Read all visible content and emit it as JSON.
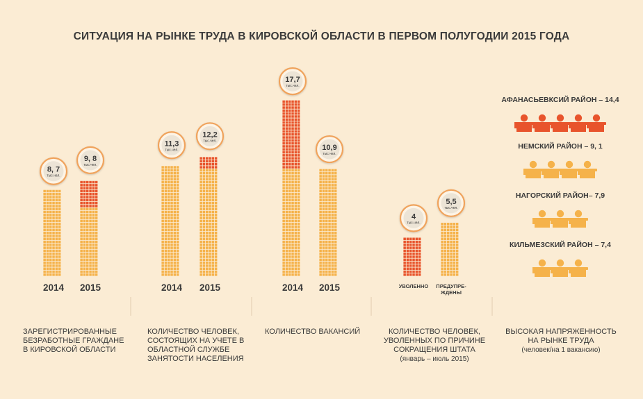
{
  "title": "СИТУАЦИЯ НА РЫНКЕ ТРУДА В КИРОВСКОЙ ОБЛАСТИ В ПЕРВОМ ПОЛУГОДИИ 2015 ГОДА",
  "colors": {
    "background": "#fbecd4",
    "base": "#f5b24a",
    "highlight": "#e8542c",
    "circle_ring": "#f0a35c"
  },
  "chart_data": [
    {
      "type": "bar",
      "caption": "ЗАРЕГИСТРИРОВАННЫЕ БЕЗРАБОТНЫЕ ГРАЖДАНЕ В КИРОВСКОЙ ОБЛАСТИ",
      "categories": [
        "2014",
        "2015"
      ],
      "values": [
        8.7,
        9.8
      ],
      "value_labels": [
        "8, 7",
        "9, 8"
      ],
      "unit": "тыс.чел."
    },
    {
      "type": "bar",
      "caption": "КОЛИЧЕСТВО ЧЕЛОВЕК, СОСТОЯЩИХ НА УЧЕТЕ В ОБЛАСТНОЙ СЛУЖБЕ ЗАНЯТОСТИ НАСЕЛЕНИЯ",
      "categories": [
        "2014",
        "2015"
      ],
      "values": [
        11.3,
        12.2
      ],
      "value_labels": [
        "11,3",
        "12,2"
      ],
      "unit": "тыс.чел."
    },
    {
      "type": "bar",
      "caption": "КОЛИЧЕСТВО ВАКАНСИЙ",
      "categories": [
        "2014",
        "2015"
      ],
      "values": [
        17.7,
        10.9
      ],
      "value_labels": [
        "17,7",
        "10,9"
      ],
      "unit": "тыс.чел."
    },
    {
      "type": "bar",
      "caption": "КОЛИЧЕСТВО ЧЕЛОВЕК, УВОЛЕННЫХ ПО ПРИЧИНЕ СОКРАЩЕНИЯ ШТАТА",
      "caption_sub": "(январь – июль 2015)",
      "categories": [
        "УВОЛЕННО",
        "ПРЕДУПРЕ-ЖДЕНЫ"
      ],
      "category_lines": [
        [
          "УВОЛЕННО"
        ],
        [
          "ПРЕДУПРЕ-",
          "ЖДЕНЫ"
        ]
      ],
      "values": [
        4,
        5.5
      ],
      "value_labels": [
        "4",
        "5,5"
      ],
      "unit": "тыс.чел."
    },
    {
      "type": "table",
      "caption": "ВЫСОКАЯ НАПРЯЖЕННОСТЬ НА РЫНКЕ ТРУДА",
      "caption_sub": "(человек/на 1 вакансию)",
      "rows": [
        {
          "label": "АФАНАСЬЕВКСИЙ РАЙОН – 14,4",
          "value": 14.4,
          "icons": 5
        },
        {
          "label": "НЕМСКИЙ РАЙОН – 9, 1",
          "value": 9.1,
          "icons": 4
        },
        {
          "label": "НАГОРСКИЙ РАЙОН– 7,9",
          "value": 7.9,
          "icons": 3
        },
        {
          "label": "КИЛЬМЕЗСКИЙ РАЙОН – 7,4",
          "value": 7.4,
          "icons": 3
        }
      ]
    }
  ]
}
